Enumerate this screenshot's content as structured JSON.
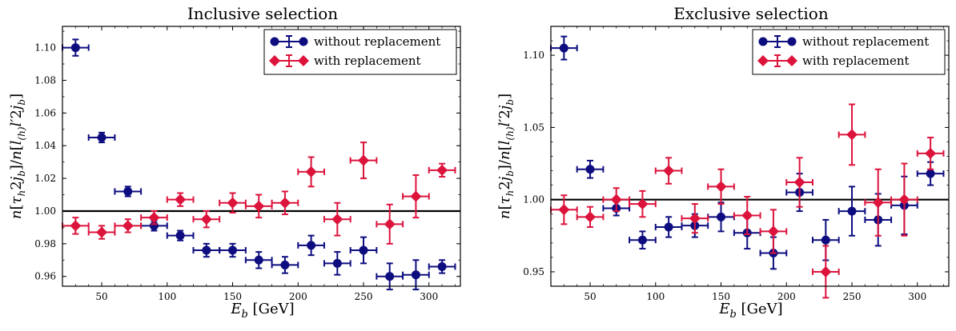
{
  "chart_data": [
    {
      "type": "scatter",
      "title": "Inclusive selection",
      "xlabel": "E_b [GeV]",
      "ylabel": "n[τ_h 2j_b]/n[l_(h) l′ 2j_b]",
      "xlim": [
        20,
        324
      ],
      "ylim": [
        0.954,
        1.113
      ],
      "xticks": [
        50,
        100,
        150,
        200,
        250,
        300
      ],
      "yticks": [
        0.96,
        0.98,
        1.0,
        1.02,
        1.04,
        1.06,
        1.08,
        1.1
      ],
      "ytick_labels": [
        "0.96",
        "0.98",
        "1.00",
        "1.02",
        "1.04",
        "1.06",
        "1.08",
        "1.10"
      ],
      "reference_line": 1.0,
      "legend_position": "top-right",
      "series": [
        {
          "name": "without replacement",
          "color": "#0d0d80",
          "marker": "circle",
          "points": [
            {
              "x": 30,
              "y": 1.1,
              "xerr": 10,
              "yerr": 0.005
            },
            {
              "x": 50,
              "y": 1.045,
              "xerr": 10,
              "yerr": 0.003
            },
            {
              "x": 70,
              "y": 1.012,
              "xerr": 10,
              "yerr": 0.003
            },
            {
              "x": 90,
              "y": 0.991,
              "xerr": 10,
              "yerr": 0.003
            },
            {
              "x": 110,
              "y": 0.985,
              "xerr": 10,
              "yerr": 0.003
            },
            {
              "x": 130,
              "y": 0.976,
              "xerr": 10,
              "yerr": 0.004
            },
            {
              "x": 150,
              "y": 0.976,
              "xerr": 10,
              "yerr": 0.004
            },
            {
              "x": 170,
              "y": 0.97,
              "xerr": 10,
              "yerr": 0.005
            },
            {
              "x": 190,
              "y": 0.967,
              "xerr": 10,
              "yerr": 0.005
            },
            {
              "x": 210,
              "y": 0.979,
              "xerr": 10,
              "yerr": 0.006
            },
            {
              "x": 230,
              "y": 0.968,
              "xerr": 10,
              "yerr": 0.007
            },
            {
              "x": 250,
              "y": 0.976,
              "xerr": 10,
              "yerr": 0.008
            },
            {
              "x": 270,
              "y": 0.96,
              "xerr": 10,
              "yerr": 0.008
            },
            {
              "x": 290,
              "y": 0.961,
              "xerr": 10,
              "yerr": 0.009
            },
            {
              "x": 310,
              "y": 0.966,
              "xerr": 10,
              "yerr": 0.004
            }
          ]
        },
        {
          "name": "with replacement",
          "color": "#dc143c",
          "marker": "diamond",
          "points": [
            {
              "x": 30,
              "y": 0.991,
              "xerr": 10,
              "yerr": 0.005
            },
            {
              "x": 50,
              "y": 0.987,
              "xerr": 10,
              "yerr": 0.004
            },
            {
              "x": 70,
              "y": 0.991,
              "xerr": 10,
              "yerr": 0.004
            },
            {
              "x": 90,
              "y": 0.996,
              "xerr": 10,
              "yerr": 0.004
            },
            {
              "x": 110,
              "y": 1.007,
              "xerr": 10,
              "yerr": 0.004
            },
            {
              "x": 130,
              "y": 0.995,
              "xerr": 10,
              "yerr": 0.005
            },
            {
              "x": 150,
              "y": 1.005,
              "xerr": 10,
              "yerr": 0.006
            },
            {
              "x": 170,
              "y": 1.003,
              "xerr": 10,
              "yerr": 0.007
            },
            {
              "x": 190,
              "y": 1.005,
              "xerr": 10,
              "yerr": 0.007
            },
            {
              "x": 210,
              "y": 1.024,
              "xerr": 10,
              "yerr": 0.009
            },
            {
              "x": 230,
              "y": 0.995,
              "xerr": 10,
              "yerr": 0.01
            },
            {
              "x": 250,
              "y": 1.031,
              "xerr": 10,
              "yerr": 0.011
            },
            {
              "x": 270,
              "y": 0.992,
              "xerr": 10,
              "yerr": 0.012
            },
            {
              "x": 290,
              "y": 1.009,
              "xerr": 10,
              "yerr": 0.013
            },
            {
              "x": 310,
              "y": 1.025,
              "xerr": 10,
              "yerr": 0.004
            }
          ]
        }
      ]
    },
    {
      "type": "scatter",
      "title": "Exclusive selection",
      "xlabel": "E_b [GeV]",
      "ylabel": "n[τ_h 2j_b]/n[l_(h) l′ 2j_b]",
      "xlim": [
        20,
        324
      ],
      "ylim": [
        0.94,
        1.12
      ],
      "xticks": [
        50,
        100,
        150,
        200,
        250,
        300
      ],
      "yticks": [
        0.95,
        1.0,
        1.05,
        1.1
      ],
      "ytick_labels": [
        "0.95",
        "1.00",
        "1.05",
        "1.10"
      ],
      "reference_line": 1.0,
      "legend_position": "top-right",
      "series": [
        {
          "name": "without replacement",
          "color": "#0d0d80",
          "marker": "circle",
          "points": [
            {
              "x": 30,
              "y": 1.105,
              "xerr": 10,
              "yerr": 0.008
            },
            {
              "x": 50,
              "y": 1.021,
              "xerr": 10,
              "yerr": 0.006
            },
            {
              "x": 70,
              "y": 0.994,
              "xerr": 10,
              "yerr": 0.005
            },
            {
              "x": 90,
              "y": 0.972,
              "xerr": 10,
              "yerr": 0.006
            },
            {
              "x": 110,
              "y": 0.981,
              "xerr": 10,
              "yerr": 0.007
            },
            {
              "x": 130,
              "y": 0.982,
              "xerr": 10,
              "yerr": 0.008
            },
            {
              "x": 150,
              "y": 0.988,
              "xerr": 10,
              "yerr": 0.01
            },
            {
              "x": 170,
              "y": 0.977,
              "xerr": 10,
              "yerr": 0.011
            },
            {
              "x": 190,
              "y": 0.963,
              "xerr": 10,
              "yerr": 0.011
            },
            {
              "x": 210,
              "y": 1.005,
              "xerr": 10,
              "yerr": 0.013
            },
            {
              "x": 230,
              "y": 0.972,
              "xerr": 10,
              "yerr": 0.014
            },
            {
              "x": 250,
              "y": 0.992,
              "xerr": 10,
              "yerr": 0.017
            },
            {
              "x": 270,
              "y": 0.986,
              "xerr": 10,
              "yerr": 0.018
            },
            {
              "x": 290,
              "y": 0.996,
              "xerr": 10,
              "yerr": 0.02
            },
            {
              "x": 310,
              "y": 1.018,
              "xerr": 10,
              "yerr": 0.008
            }
          ]
        },
        {
          "name": "with replacement",
          "color": "#dc143c",
          "marker": "diamond",
          "points": [
            {
              "x": 30,
              "y": 0.993,
              "xerr": 10,
              "yerr": 0.01
            },
            {
              "x": 50,
              "y": 0.988,
              "xerr": 10,
              "yerr": 0.007
            },
            {
              "x": 70,
              "y": 1.0,
              "xerr": 10,
              "yerr": 0.008
            },
            {
              "x": 90,
              "y": 0.997,
              "xerr": 10,
              "yerr": 0.009
            },
            {
              "x": 110,
              "y": 1.02,
              "xerr": 10,
              "yerr": 0.009
            },
            {
              "x": 130,
              "y": 0.987,
              "xerr": 10,
              "yerr": 0.01
            },
            {
              "x": 150,
              "y": 1.009,
              "xerr": 10,
              "yerr": 0.012
            },
            {
              "x": 170,
              "y": 0.989,
              "xerr": 10,
              "yerr": 0.013
            },
            {
              "x": 190,
              "y": 0.978,
              "xerr": 10,
              "yerr": 0.015
            },
            {
              "x": 210,
              "y": 1.012,
              "xerr": 10,
              "yerr": 0.017
            },
            {
              "x": 230,
              "y": 0.95,
              "xerr": 10,
              "yerr": 0.018
            },
            {
              "x": 250,
              "y": 1.045,
              "xerr": 10,
              "yerr": 0.021
            },
            {
              "x": 270,
              "y": 0.998,
              "xerr": 10,
              "yerr": 0.023
            },
            {
              "x": 290,
              "y": 1.0,
              "xerr": 10,
              "yerr": 0.025
            },
            {
              "x": 310,
              "y": 1.032,
              "xerr": 10,
              "yerr": 0.011
            }
          ]
        }
      ]
    }
  ]
}
